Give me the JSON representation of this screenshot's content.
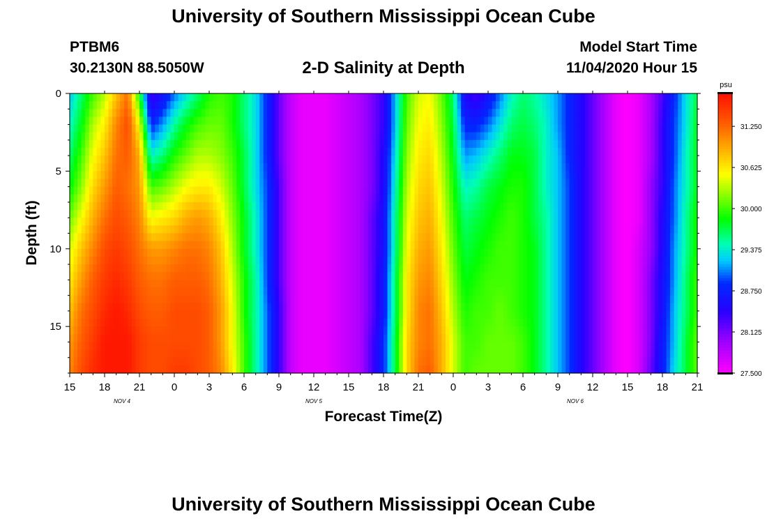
{
  "header": {
    "title": "University of Southern Mississippi Ocean Cube",
    "station": "PTBM6",
    "coordinates": "30.2130N 88.5050W",
    "chart_title": "2-D Salinity at Depth",
    "start_label": "Model Start Time",
    "start_time": "11/04/2020 Hour 15"
  },
  "footer": {
    "title": "University of Southern Mississippi Ocean Cube"
  },
  "colors": {
    "background": "#ffffff",
    "text": "#000000"
  },
  "chart_data": {
    "type": "heatmap",
    "title": "2-D Salinity at Depth",
    "xlabel": "Forecast Time(Z)",
    "ylabel": "Depth (ft)",
    "x_range_hours": [
      0,
      54
    ],
    "x_tick_labels": [
      "15",
      "18",
      "21",
      "0",
      "3",
      "6",
      "9",
      "12",
      "15",
      "18",
      "21",
      "0",
      "3",
      "6",
      "9",
      "12",
      "15",
      "18",
      "21"
    ],
    "date_labels": [
      {
        "label": "NOV 4",
        "hour": 4.5
      },
      {
        "label": "NOV 5",
        "hour": 21
      },
      {
        "label": "NOV 6",
        "hour": 43.5
      }
    ],
    "y_range_ft": [
      0,
      18
    ],
    "y_ticks": [
      0,
      5,
      10,
      15
    ],
    "colorbar": {
      "unit": "psu",
      "min": 27.5,
      "max": 31.75,
      "tick_labels": [
        "31.250",
        "30.625",
        "30.000",
        "29.375",
        "28.750",
        "28.125",
        "27.500"
      ]
    },
    "grid_depth_ft": [
      0,
      2,
      4,
      6,
      8,
      10,
      12,
      14,
      16,
      18
    ],
    "grid_hours": [
      0,
      1,
      2,
      3,
      4,
      5,
      6,
      7,
      8,
      9,
      10,
      11,
      12,
      13,
      14,
      15,
      16,
      17,
      18,
      19,
      20,
      21,
      22,
      23,
      24,
      25,
      26,
      27,
      28,
      29,
      30,
      31,
      32,
      33,
      34,
      35,
      36,
      37,
      38,
      39,
      40,
      41,
      42,
      43,
      44,
      45,
      46,
      47,
      48,
      49,
      50,
      51,
      52,
      53,
      54
    ],
    "values_psu": [
      [
        29.2,
        29.6,
        30.0,
        30.3,
        30.8,
        31.2,
        29.8,
        28.3,
        28.6,
        29.0,
        29.3,
        29.6,
        29.9,
        30.0,
        29.9,
        29.6,
        29.3,
        28.8,
        28.2,
        27.8,
        27.6,
        27.6,
        27.6,
        27.7,
        27.8,
        27.9,
        28.1,
        28.4,
        29.2,
        30.0,
        30.4,
        30.5,
        30.1,
        29.6,
        28.5,
        28.3,
        28.6,
        29.0,
        29.4,
        29.6,
        29.5,
        29.3,
        29.1,
        28.8,
        28.5,
        28.2,
        27.9,
        27.6,
        27.5,
        27.6,
        27.9,
        28.3,
        28.8,
        29.3,
        29.7
      ],
      [
        29.4,
        29.8,
        30.3,
        30.6,
        31.1,
        31.4,
        30.5,
        28.8,
        29.1,
        29.5,
        29.8,
        30.0,
        30.1,
        30.1,
        29.9,
        29.6,
        29.3,
        28.8,
        28.2,
        27.8,
        27.6,
        27.6,
        27.6,
        27.7,
        27.8,
        27.9,
        28.1,
        28.4,
        29.2,
        30.1,
        30.5,
        30.6,
        30.2,
        29.7,
        28.8,
        28.8,
        29.0,
        29.3,
        29.6,
        29.7,
        29.6,
        29.4,
        29.1,
        28.8,
        28.5,
        28.2,
        27.9,
        27.6,
        27.5,
        27.6,
        27.9,
        28.4,
        28.9,
        29.3,
        29.8
      ],
      [
        29.6,
        30.0,
        30.5,
        30.8,
        31.2,
        31.3,
        30.9,
        29.4,
        29.6,
        29.9,
        30.1,
        30.3,
        30.3,
        30.2,
        30.0,
        29.7,
        29.3,
        28.8,
        28.2,
        27.8,
        27.6,
        27.6,
        27.6,
        27.7,
        27.8,
        27.9,
        28.1,
        28.5,
        29.3,
        30.2,
        30.6,
        30.7,
        30.3,
        29.8,
        29.1,
        29.2,
        29.4,
        29.6,
        29.8,
        29.8,
        29.7,
        29.4,
        29.2,
        28.8,
        28.5,
        28.2,
        27.9,
        27.6,
        27.5,
        27.6,
        27.9,
        28.4,
        28.9,
        29.4,
        29.8
      ],
      [
        29.8,
        30.2,
        30.7,
        31.0,
        31.3,
        31.2,
        31.0,
        30.0,
        30.1,
        30.3,
        30.5,
        30.6,
        30.6,
        30.4,
        30.1,
        29.7,
        29.3,
        28.9,
        28.3,
        27.8,
        27.6,
        27.6,
        27.6,
        27.7,
        27.8,
        27.9,
        28.1,
        28.5,
        29.4,
        30.3,
        30.7,
        30.8,
        30.4,
        29.9,
        29.4,
        29.5,
        29.7,
        29.8,
        29.9,
        29.9,
        29.7,
        29.4,
        29.2,
        28.9,
        28.5,
        28.2,
        27.9,
        27.6,
        27.5,
        27.6,
        28.0,
        28.4,
        29.0,
        29.4,
        29.8
      ],
      [
        30.1,
        30.5,
        30.9,
        31.2,
        31.4,
        31.3,
        31.1,
        30.5,
        30.6,
        30.7,
        30.9,
        31.0,
        30.9,
        30.6,
        30.2,
        29.8,
        29.4,
        28.9,
        28.3,
        27.8,
        27.6,
        27.6,
        27.6,
        27.7,
        27.8,
        27.9,
        28.2,
        28.6,
        29.5,
        30.4,
        30.8,
        30.9,
        30.5,
        30.0,
        29.6,
        29.7,
        29.8,
        29.9,
        30.0,
        29.9,
        29.7,
        29.5,
        29.2,
        28.9,
        28.5,
        28.2,
        27.9,
        27.6,
        27.5,
        27.6,
        28.0,
        28.5,
        29.0,
        29.5,
        29.9
      ],
      [
        30.4,
        30.8,
        31.1,
        31.4,
        31.5,
        31.4,
        31.2,
        31.0,
        31.0,
        31.1,
        31.2,
        31.2,
        31.1,
        30.8,
        30.3,
        29.8,
        29.4,
        28.9,
        28.3,
        27.8,
        27.6,
        27.6,
        27.6,
        27.7,
        27.8,
        27.9,
        28.2,
        28.6,
        29.5,
        30.5,
        30.9,
        31.0,
        30.6,
        30.1,
        29.7,
        29.8,
        29.9,
        30.0,
        30.0,
        29.9,
        29.8,
        29.5,
        29.2,
        28.9,
        28.5,
        28.2,
        27.9,
        27.6,
        27.5,
        27.7,
        28.0,
        28.5,
        29.1,
        29.5,
        29.9
      ],
      [
        30.6,
        31.0,
        31.3,
        31.5,
        31.6,
        31.5,
        31.3,
        31.2,
        31.2,
        31.3,
        31.3,
        31.3,
        31.2,
        30.9,
        30.4,
        29.9,
        29.5,
        28.9,
        28.3,
        27.8,
        27.6,
        27.6,
        27.6,
        27.7,
        27.8,
        27.9,
        28.2,
        28.7,
        29.6,
        30.6,
        31.0,
        31.1,
        30.7,
        30.2,
        29.8,
        29.9,
        30.0,
        30.0,
        30.0,
        29.9,
        29.8,
        29.5,
        29.2,
        28.9,
        28.5,
        28.2,
        27.9,
        27.6,
        27.5,
        27.7,
        28.1,
        28.6,
        29.1,
        29.6,
        30.0
      ],
      [
        30.8,
        31.2,
        31.4,
        31.6,
        31.7,
        31.6,
        31.4,
        31.3,
        31.3,
        31.4,
        31.4,
        31.4,
        31.3,
        31.0,
        30.5,
        29.9,
        29.5,
        29.0,
        28.4,
        27.8,
        27.6,
        27.6,
        27.6,
        27.7,
        27.8,
        27.9,
        28.2,
        28.7,
        29.6,
        30.6,
        31.1,
        31.2,
        30.8,
        30.3,
        29.9,
        30.0,
        30.0,
        30.1,
        30.0,
        29.9,
        29.8,
        29.5,
        29.2,
        28.9,
        28.5,
        28.2,
        27.9,
        27.6,
        27.5,
        27.7,
        28.1,
        28.6,
        29.2,
        29.6,
        30.0
      ],
      [
        31.0,
        31.3,
        31.5,
        31.7,
        31.7,
        31.7,
        31.5,
        31.4,
        31.4,
        31.4,
        31.4,
        31.4,
        31.3,
        31.0,
        30.5,
        30.0,
        29.5,
        29.0,
        28.4,
        27.8,
        27.6,
        27.6,
        27.6,
        27.7,
        27.8,
        27.9,
        28.3,
        28.8,
        29.7,
        30.7,
        31.1,
        31.2,
        30.9,
        30.4,
        30.0,
        30.0,
        30.1,
        30.1,
        30.1,
        30.0,
        29.8,
        29.5,
        29.2,
        28.9,
        28.5,
        28.2,
        27.9,
        27.6,
        27.5,
        27.7,
        28.1,
        28.7,
        29.2,
        29.7,
        30.1
      ],
      [
        31.1,
        31.4,
        31.6,
        31.7,
        31.7,
        31.7,
        31.5,
        31.4,
        31.4,
        31.5,
        31.5,
        31.4,
        31.3,
        31.1,
        30.6,
        30.0,
        29.5,
        29.0,
        28.4,
        27.8,
        27.6,
        27.6,
        27.6,
        27.7,
        27.8,
        27.9,
        28.3,
        28.8,
        29.7,
        30.7,
        31.2,
        31.3,
        30.9,
        30.4,
        30.0,
        30.1,
        30.1,
        30.1,
        30.1,
        30.0,
        29.8,
        29.5,
        29.2,
        28.9,
        28.5,
        28.2,
        27.9,
        27.6,
        27.5,
        27.7,
        28.2,
        28.7,
        29.3,
        29.7,
        30.1
      ]
    ]
  }
}
